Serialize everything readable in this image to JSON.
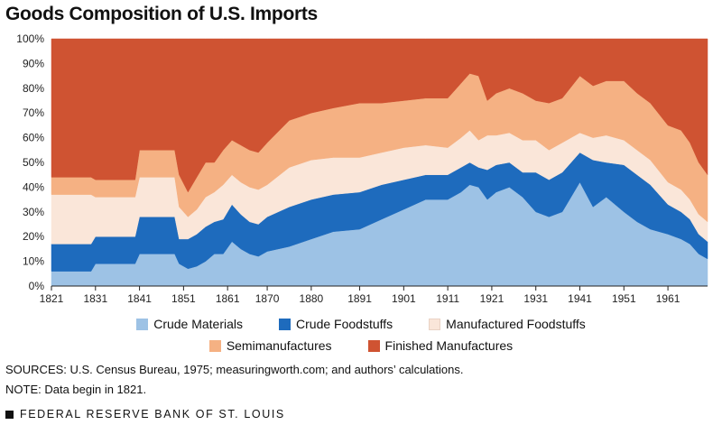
{
  "chart_data": {
    "type": "area",
    "stacked": true,
    "title": "Goods Composition of U.S. Imports",
    "xlabel": "",
    "ylabel": "",
    "ylim": [
      0,
      100
    ],
    "xlim": [
      1821,
      1970
    ],
    "xticks": [
      "1821",
      "1831",
      "1841",
      "1851",
      "1861",
      "1870",
      "1880",
      "1891",
      "1901",
      "1911",
      "1921",
      "1931",
      "1941",
      "1951",
      "1961"
    ],
    "yticks": [
      "0%",
      "10%",
      "20%",
      "30%",
      "40%",
      "50%",
      "60%",
      "70%",
      "80%",
      "90%",
      "100%"
    ],
    "colors": {
      "crude_materials": "#9dc2e5",
      "crude_foodstuffs": "#1e6bbd",
      "manufactured_foodstuffs": "#fae6d9",
      "semimanufactures": "#f5b183",
      "finished_manufactures": "#cf5332"
    },
    "x": [
      1821,
      1830,
      1831,
      1840,
      1841,
      1849,
      1850,
      1852,
      1854,
      1856,
      1858,
      1860,
      1862,
      1864,
      1866,
      1868,
      1870,
      1875,
      1880,
      1885,
      1891,
      1896,
      1901,
      1906,
      1911,
      1914,
      1916,
      1918,
      1920,
      1922,
      1925,
      1928,
      1931,
      1934,
      1937,
      1941,
      1944,
      1947,
      1951,
      1954,
      1957,
      1961,
      1964,
      1966,
      1968,
      1970
    ],
    "series": [
      {
        "name": "Crude Materials",
        "values": [
          6,
          6,
          9,
          9,
          13,
          13,
          9,
          7,
          8,
          10,
          13,
          13,
          18,
          15,
          13,
          12,
          14,
          16,
          19,
          22,
          23,
          27,
          31,
          35,
          35,
          38,
          41,
          40,
          35,
          38,
          40,
          36,
          30,
          28,
          30,
          42,
          32,
          36,
          30,
          26,
          23,
          21,
          19,
          17,
          13,
          11
        ]
      },
      {
        "name": "Crude Foodstuffs",
        "values": [
          11,
          11,
          11,
          11,
          15,
          15,
          10,
          12,
          13,
          14,
          13,
          14,
          15,
          14,
          13,
          13,
          14,
          16,
          16,
          15,
          15,
          14,
          12,
          10,
          10,
          10,
          9,
          8,
          12,
          11,
          10,
          10,
          16,
          15,
          16,
          12,
          19,
          14,
          19,
          19,
          18,
          12,
          11,
          10,
          8,
          7
        ]
      },
      {
        "name": "Manufactured Foodstuffs",
        "values": [
          20,
          20,
          16,
          16,
          16,
          16,
          13,
          9,
          10,
          12,
          12,
          14,
          12,
          13,
          14,
          14,
          13,
          16,
          16,
          15,
          14,
          13,
          13,
          12,
          11,
          12,
          13,
          11,
          14,
          12,
          12,
          13,
          13,
          12,
          12,
          8,
          9,
          11,
          10,
          10,
          10,
          9,
          9,
          8,
          8,
          8
        ]
      },
      {
        "name": "Semimanufactures",
        "values": [
          7,
          7,
          7,
          7,
          11,
          11,
          13,
          10,
          13,
          14,
          12,
          14,
          14,
          15,
          15,
          15,
          17,
          19,
          19,
          20,
          22,
          20,
          19,
          19,
          20,
          22,
          23,
          26,
          14,
          17,
          18,
          19,
          16,
          19,
          18,
          23,
          21,
          22,
          24,
          23,
          23,
          23,
          24,
          23,
          21,
          19
        ]
      },
      {
        "name": "Finished Manufactures",
        "values": [
          56,
          56,
          57,
          57,
          45,
          45,
          55,
          62,
          56,
          50,
          50,
          45,
          41,
          43,
          45,
          46,
          42,
          33,
          30,
          28,
          26,
          26,
          25,
          24,
          24,
          18,
          14,
          15,
          25,
          22,
          20,
          22,
          25,
          26,
          24,
          15,
          19,
          17,
          17,
          22,
          26,
          35,
          37,
          42,
          50,
          55
        ]
      }
    ]
  },
  "legend": {
    "crude_materials": "Crude Materials",
    "crude_foodstuffs": "Crude Foodstuffs",
    "manufactured_foodstuffs": "Manufactured Foodstuffs",
    "semimanufactures": "Semimanufactures",
    "finished_manufactures": "Finished Manufactures"
  },
  "notes": {
    "sources": "SOURCES: U.S. Census Bureau, 1975; measuringworth.com; and authors’ calculations.",
    "note": "NOTE: Data begin in 1821."
  },
  "footer": "FEDERAL RESERVE BANK OF ST. LOUIS"
}
